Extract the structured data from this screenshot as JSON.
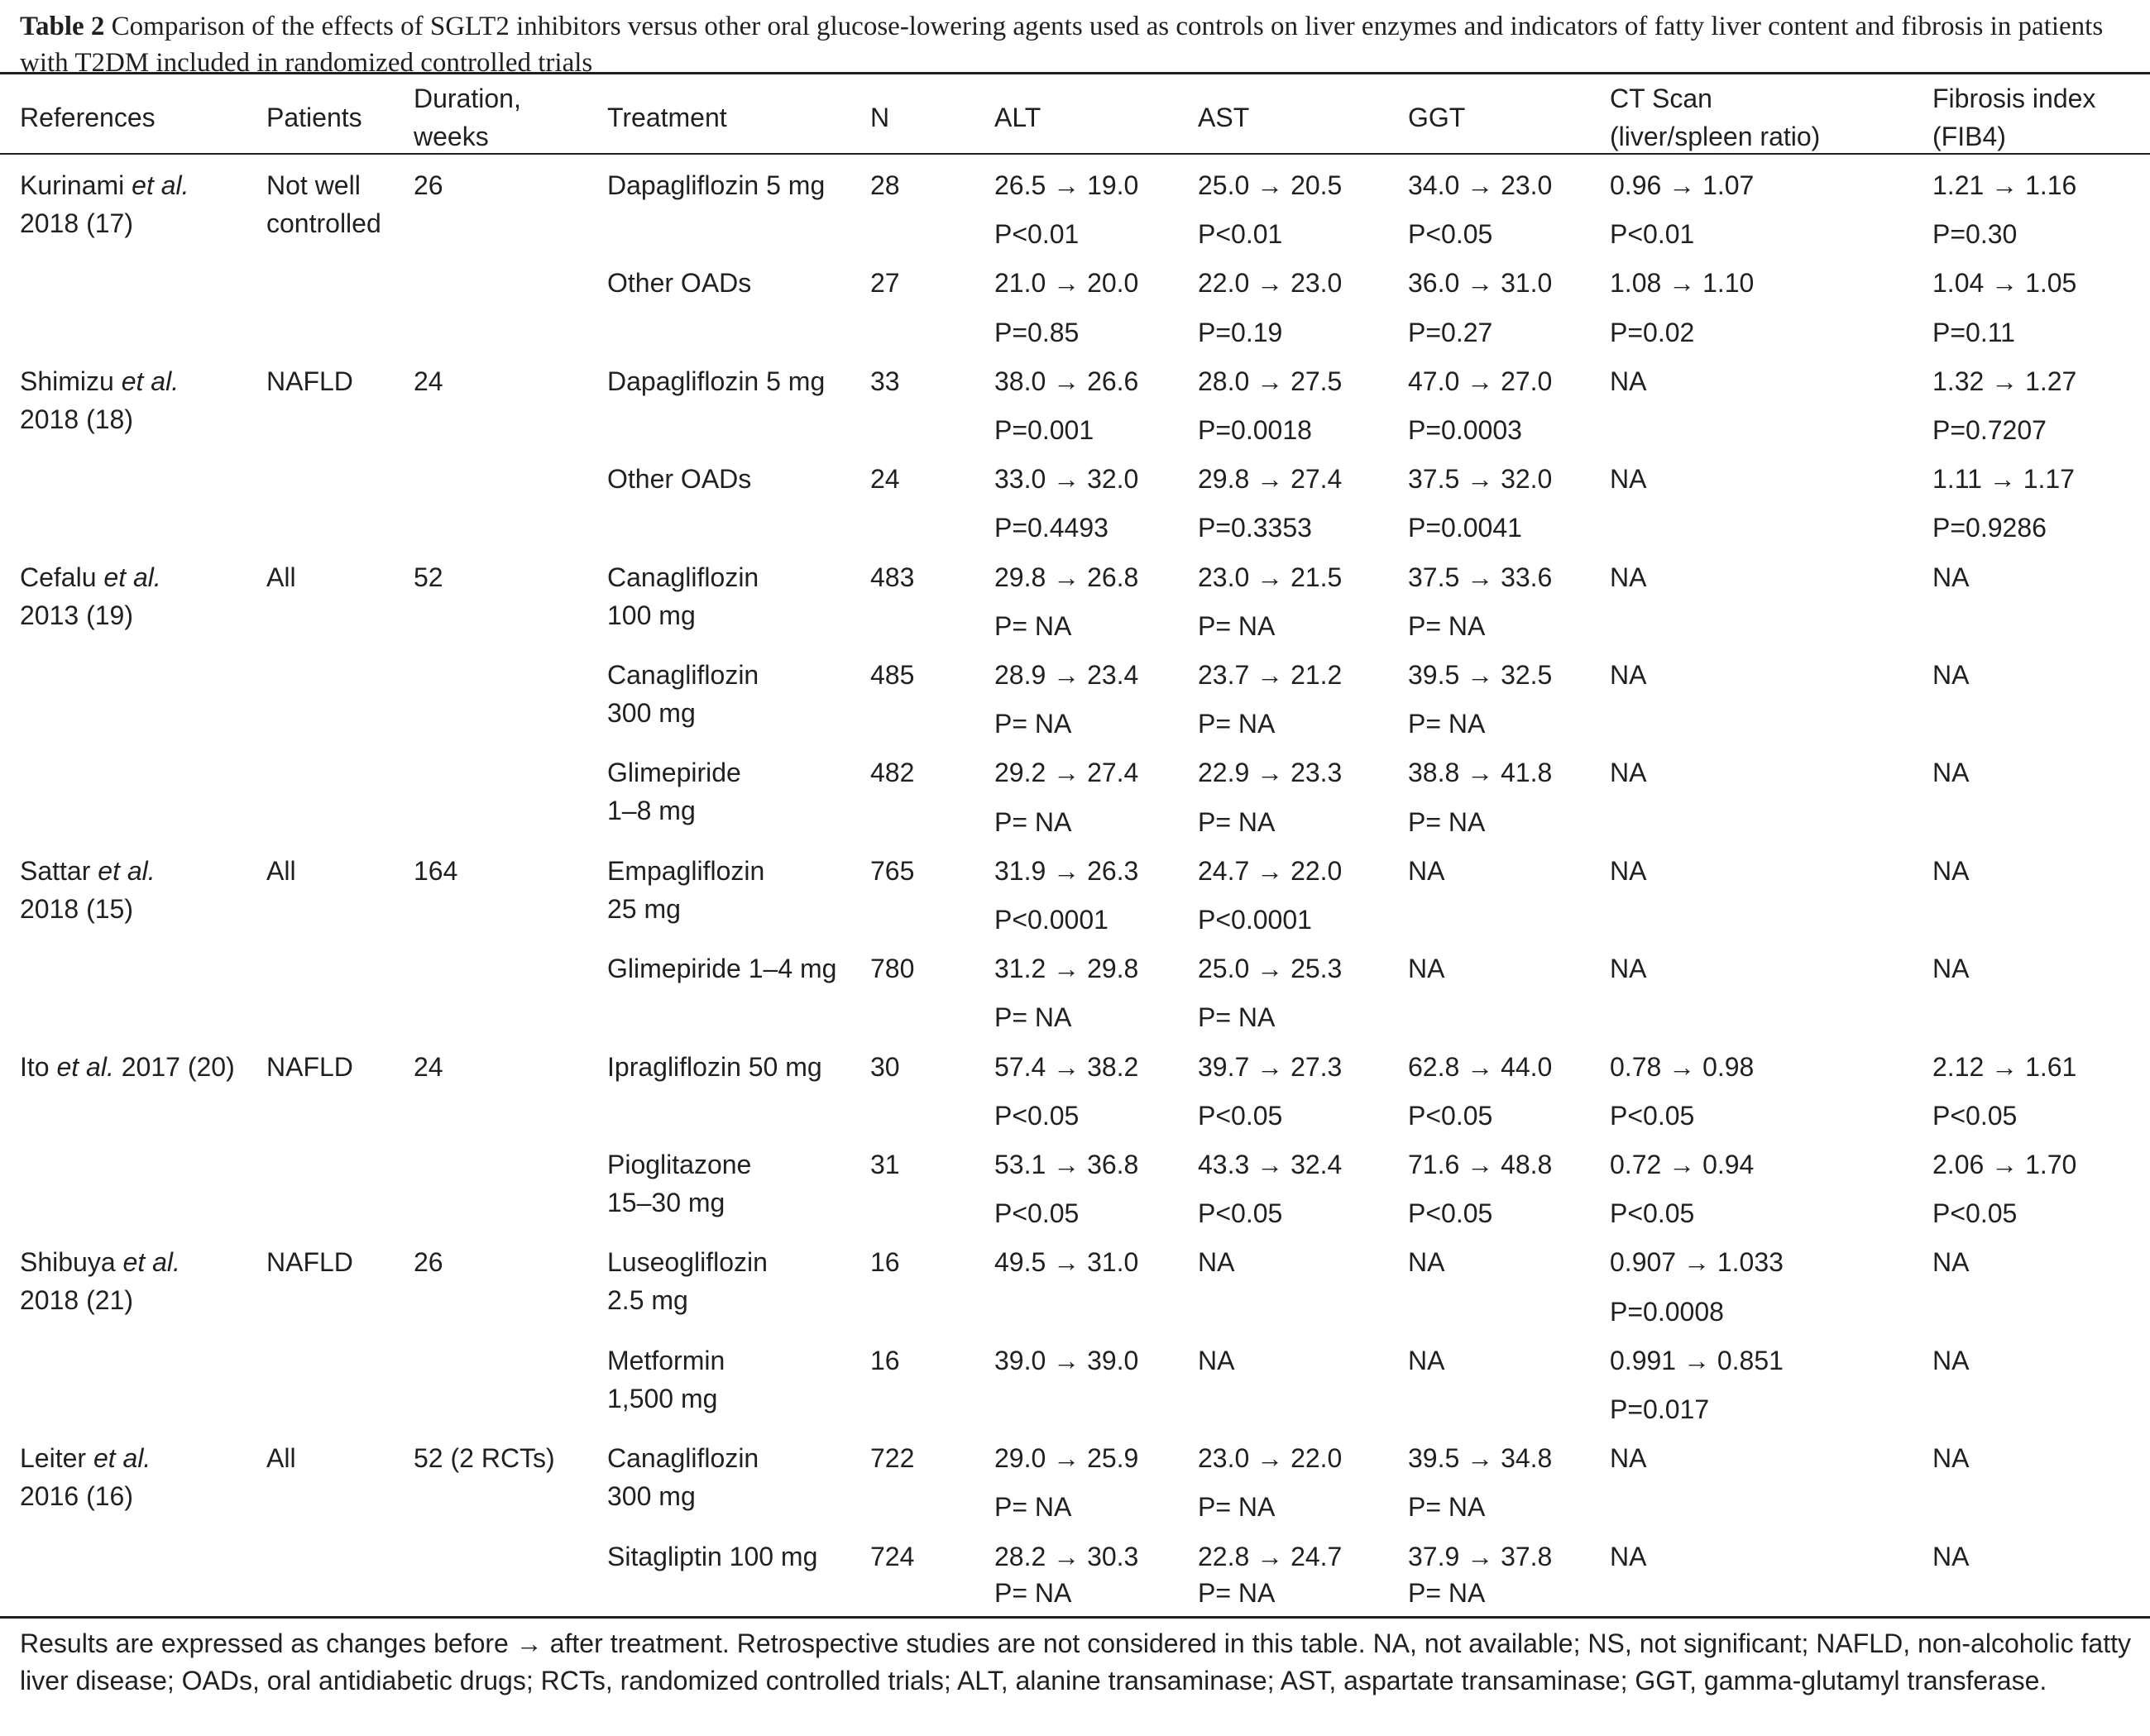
{
  "caption": {
    "label": "Table 2",
    "text": "Comparison of the effects of SGLT2 inhibitors versus other oral glucose-lowering agents used as controls on liver enzymes and indicators of fatty liver content and fibrosis in patients with T2DM included in randomized controlled trials"
  },
  "headers": [
    [
      "References"
    ],
    [
      "Patients"
    ],
    [
      "Duration,",
      "weeks"
    ],
    [
      "Treatment"
    ],
    [
      "N"
    ],
    [
      "ALT"
    ],
    [
      "AST"
    ],
    [
      "GGT"
    ],
    [
      "CT Scan",
      "(liver/spleen ratio)"
    ],
    [
      "Fibrosis index",
      "(FIB4)"
    ]
  ],
  "studies": [
    {
      "ref": [
        [
          "Kurinami ",
          "et al."
        ],
        [
          "2018 (17)"
        ]
      ],
      "patients": [
        "Not well",
        "controlled"
      ],
      "duration": "26",
      "arms": [
        {
          "treatment": [
            "Dapagliflozin 5 mg"
          ],
          "n": "28",
          "alt": [
            "26.5 → 19.0",
            "P<0.01"
          ],
          "ast": [
            "25.0 → 20.5",
            "P<0.01"
          ],
          "ggt": [
            "34.0 → 23.0",
            "P<0.05"
          ],
          "ct": [
            "0.96 → 1.07",
            "P<0.01"
          ],
          "fib4": [
            "1.21 → 1.16",
            "P=0.30"
          ]
        },
        {
          "treatment": [
            "Other OADs"
          ],
          "n": "27",
          "alt": [
            "21.0 → 20.0",
            "P=0.85"
          ],
          "ast": [
            "22.0 → 23.0",
            "P=0.19"
          ],
          "ggt": [
            "36.0 → 31.0",
            "P=0.27"
          ],
          "ct": [
            "1.08 → 1.10",
            "P=0.02"
          ],
          "fib4": [
            "1.04 → 1.05",
            "P=0.11"
          ]
        }
      ]
    },
    {
      "ref": [
        [
          "Shimizu ",
          "et al."
        ],
        [
          "2018 (18)"
        ]
      ],
      "patients": [
        "NAFLD"
      ],
      "duration": "24",
      "arms": [
        {
          "treatment": [
            "Dapagliflozin 5 mg"
          ],
          "n": "33",
          "alt": [
            "38.0 → 26.6",
            "P=0.001"
          ],
          "ast": [
            "28.0 → 27.5",
            "P=0.0018"
          ],
          "ggt": [
            "47.0 → 27.0",
            "P=0.0003"
          ],
          "ct": [
            "NA"
          ],
          "fib4": [
            "1.32 → 1.27",
            "P=0.7207"
          ]
        },
        {
          "treatment": [
            "Other OADs"
          ],
          "n": "24",
          "alt": [
            "33.0 → 32.0",
            "P=0.4493"
          ],
          "ast": [
            "29.8 → 27.4",
            "P=0.3353"
          ],
          "ggt": [
            "37.5 → 32.0",
            "P=0.0041"
          ],
          "ct": [
            "NA"
          ],
          "fib4": [
            "1.11 → 1.17",
            "P=0.9286"
          ]
        }
      ]
    },
    {
      "ref": [
        [
          "Cefalu ",
          "et al."
        ],
        [
          "2013 (19)"
        ]
      ],
      "patients": [
        "All"
      ],
      "duration": "52",
      "arms": [
        {
          "treatment": [
            "Canagliflozin",
            "100 mg"
          ],
          "n": "483",
          "alt": [
            "29.8 → 26.8",
            "P= NA"
          ],
          "ast": [
            "23.0 → 21.5",
            "P= NA"
          ],
          "ggt": [
            "37.5 → 33.6",
            "P= NA"
          ],
          "ct": [
            "NA"
          ],
          "fib4": [
            "NA"
          ]
        },
        {
          "treatment": [
            "Canagliflozin",
            "300 mg"
          ],
          "n": "485",
          "alt": [
            "28.9 → 23.4",
            "P= NA"
          ],
          "ast": [
            "23.7 → 21.2",
            "P= NA"
          ],
          "ggt": [
            "39.5 → 32.5",
            "P= NA"
          ],
          "ct": [
            "NA"
          ],
          "fib4": [
            "NA"
          ]
        },
        {
          "treatment": [
            "Glimepiride",
            "1–8 mg"
          ],
          "n": "482",
          "alt": [
            "29.2 → 27.4",
            "P= NA"
          ],
          "ast": [
            "22.9 → 23.3",
            "P= NA"
          ],
          "ggt": [
            "38.8 → 41.8",
            "P= NA"
          ],
          "ct": [
            "NA"
          ],
          "fib4": [
            "NA"
          ]
        }
      ]
    },
    {
      "ref": [
        [
          "Sattar ",
          "et al."
        ],
        [
          "2018 (15)"
        ]
      ],
      "patients": [
        "All"
      ],
      "duration": "164",
      "arms": [
        {
          "treatment": [
            "Empagliflozin",
            "25 mg"
          ],
          "n": "765",
          "alt": [
            "31.9 → 26.3",
            "P<0.0001"
          ],
          "ast": [
            "24.7 → 22.0",
            "P<0.0001"
          ],
          "ggt": [
            "NA"
          ],
          "ct": [
            "NA"
          ],
          "fib4": [
            "NA"
          ]
        },
        {
          "treatment": [
            "Glimepiride 1–4 mg"
          ],
          "n": "780",
          "alt": [
            "31.2 → 29.8",
            "P= NA"
          ],
          "ast": [
            "25.0 → 25.3",
            "P= NA"
          ],
          "ggt": [
            "NA"
          ],
          "ct": [
            "NA"
          ],
          "fib4": [
            "NA"
          ]
        }
      ]
    },
    {
      "ref": [
        [
          "Ito ",
          "et al.",
          " 2017 (20)"
        ]
      ],
      "patients": [
        "NAFLD"
      ],
      "duration": "24",
      "arms": [
        {
          "treatment": [
            "Ipragliflozin 50 mg"
          ],
          "n": "30",
          "alt": [
            "57.4 → 38.2",
            "P<0.05"
          ],
          "ast": [
            "39.7 → 27.3",
            "P<0.05"
          ],
          "ggt": [
            "62.8 → 44.0",
            "P<0.05"
          ],
          "ct": [
            "0.78 → 0.98",
            "P<0.05"
          ],
          "fib4": [
            "2.12 → 1.61",
            "P<0.05"
          ]
        },
        {
          "treatment": [
            "Pioglitazone",
            "15–30 mg"
          ],
          "n": "31",
          "alt": [
            "53.1 → 36.8",
            "P<0.05"
          ],
          "ast": [
            "43.3 → 32.4",
            "P<0.05"
          ],
          "ggt": [
            "71.6 → 48.8",
            "P<0.05"
          ],
          "ct": [
            "0.72 → 0.94",
            "P<0.05"
          ],
          "fib4": [
            "2.06 → 1.70",
            "P<0.05"
          ]
        }
      ]
    },
    {
      "ref": [
        [
          "Shibuya ",
          "et al."
        ],
        [
          "2018 (21)"
        ]
      ],
      "patients": [
        "NAFLD"
      ],
      "duration": "26",
      "arms": [
        {
          "treatment": [
            "Luseogliflozin",
            "2.5 mg"
          ],
          "n": "16",
          "alt": [
            "49.5 → 31.0"
          ],
          "ast": [
            "NA"
          ],
          "ggt": [
            "NA"
          ],
          "ct": [
            "0.907 → 1.033",
            "P=0.0008"
          ],
          "fib4": [
            "NA"
          ]
        },
        {
          "treatment": [
            "Metformin",
            "1,500 mg"
          ],
          "n": "16",
          "alt": [
            "39.0 → 39.0"
          ],
          "ast": [
            "NA"
          ],
          "ggt": [
            "NA"
          ],
          "ct": [
            "0.991 → 0.851",
            "P=0.017"
          ],
          "fib4": [
            "NA"
          ]
        }
      ]
    },
    {
      "ref": [
        [
          "Leiter ",
          "et al."
        ],
        [
          "2016 (16)"
        ]
      ],
      "patients": [
        "All"
      ],
      "duration": "52 (2 RCTs)",
      "arms": [
        {
          "treatment": [
            "Canagliflozin",
            "300 mg"
          ],
          "n": "722",
          "alt": [
            "29.0 → 25.9",
            "P= NA"
          ],
          "ast": [
            "23.0 → 22.0",
            "P= NA"
          ],
          "ggt": [
            "39.5 → 34.8",
            "P= NA"
          ],
          "ct": [
            "NA"
          ],
          "fib4": [
            "NA"
          ]
        },
        {
          "treatment": [
            "Sitagliptin 100 mg"
          ],
          "n": "724",
          "alt": [
            "28.2 → 30.3",
            "P= NA"
          ],
          "ast": [
            "22.8 → 24.7",
            "P= NA"
          ],
          "ggt": [
            "37.9 → 37.8",
            "P= NA"
          ],
          "ct": [
            "NA"
          ],
          "fib4": [
            "NA"
          ]
        }
      ]
    }
  ],
  "footnote": "Results are expressed as changes before → after treatment. Retrospective studies are not considered in this table. NA, not available; NS, not significant; NAFLD, non-alcoholic fatty liver disease; OADs, oral antidiabetic drugs; RCTs, randomized controlled trials; ALT, alanine transaminase; AST, aspartate transaminase; GGT, gamma-glutamyl transferase."
}
